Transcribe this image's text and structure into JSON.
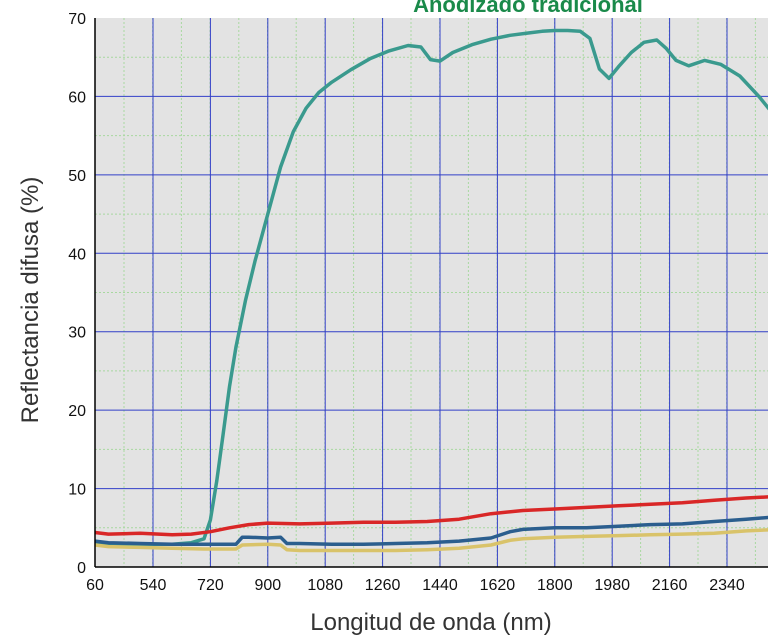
{
  "chart_data": {
    "type": "line",
    "title": "Anodizado tradicional",
    "xlabel": "Longitud de onda (nm)",
    "ylabel": "Reflectancia difusa (%)",
    "xlim": [
      250,
      2500
    ],
    "ylim": [
      0,
      70
    ],
    "x_ticks": [
      "60",
      "540",
      "720",
      "900",
      "1080",
      "1260",
      "1440",
      "1620",
      "1800",
      "1980",
      "2160",
      "2340"
    ],
    "y_ticks": [
      "0",
      "10",
      "20",
      "30",
      "40",
      "50",
      "60",
      "70"
    ],
    "grid": true,
    "series": [
      {
        "color": "#3a9a8e",
        "x": [
          250,
          400,
          500,
          600,
          660,
          700,
          720,
          740,
          760,
          780,
          800,
          830,
          860,
          900,
          940,
          980,
          1020,
          1060,
          1100,
          1160,
          1220,
          1280,
          1340,
          1380,
          1410,
          1440,
          1480,
          1540,
          1600,
          1660,
          1720,
          1760,
          1800,
          1840,
          1880,
          1910,
          1940,
          1970,
          2000,
          2040,
          2080,
          2120,
          2150,
          2180,
          2220,
          2270,
          2320,
          2380,
          2440,
          2500
        ],
        "y": [
          3.2,
          3.0,
          2.9,
          2.9,
          3.1,
          3.6,
          6,
          11,
          17,
          23,
          28,
          34,
          39,
          45,
          51,
          55.5,
          58.5,
          60.5,
          61.8,
          63.4,
          64.8,
          65.8,
          66.5,
          66.3,
          64.7,
          64.5,
          65.6,
          66.6,
          67.3,
          67.8,
          68.1,
          68.3,
          68.4,
          68.4,
          68.3,
          67.4,
          63.5,
          62.3,
          63.8,
          65.6,
          66.9,
          67.2,
          66.1,
          64.6,
          63.9,
          64.6,
          64.1,
          62.6,
          60.0,
          57.0
        ]
      },
      {
        "color": "#d92727",
        "x": [
          250,
          400,
          500,
          600,
          660,
          720,
          780,
          840,
          900,
          1000,
          1100,
          1200,
          1300,
          1400,
          1500,
          1600,
          1700,
          1800,
          1900,
          2000,
          2100,
          2200,
          2300,
          2400,
          2500
        ],
        "y": [
          4.4,
          4.2,
          4.3,
          4.1,
          4.2,
          4.5,
          5.0,
          5.4,
          5.6,
          5.5,
          5.6,
          5.7,
          5.7,
          5.8,
          6.1,
          6.8,
          7.2,
          7.4,
          7.6,
          7.8,
          8.0,
          8.2,
          8.5,
          8.8,
          9.0
        ]
      },
      {
        "color": "#2b5e8e",
        "x": [
          250,
          400,
          500,
          600,
          700,
          800,
          820,
          840,
          900,
          940,
          960,
          1000,
          1100,
          1200,
          1300,
          1400,
          1500,
          1600,
          1660,
          1700,
          1800,
          1900,
          2000,
          2100,
          2200,
          2300,
          2400,
          2500
        ],
        "y": [
          3.3,
          3.1,
          3.0,
          2.9,
          2.9,
          2.9,
          3.8,
          3.8,
          3.7,
          3.8,
          3.0,
          3.0,
          2.9,
          2.9,
          3.0,
          3.1,
          3.3,
          3.7,
          4.5,
          4.8,
          5.0,
          5.0,
          5.2,
          5.4,
          5.5,
          5.8,
          6.1,
          6.4
        ]
      },
      {
        "color": "#d9c36a",
        "x": [
          250,
          400,
          500,
          600,
          700,
          800,
          820,
          900,
          940,
          960,
          1000,
          1100,
          1200,
          1300,
          1400,
          1500,
          1600,
          1660,
          1700,
          1800,
          1900,
          2000,
          2100,
          2200,
          2300,
          2400,
          2500
        ],
        "y": [
          2.8,
          2.6,
          2.5,
          2.4,
          2.3,
          2.3,
          2.8,
          2.9,
          2.8,
          2.2,
          2.1,
          2.1,
          2.1,
          2.1,
          2.2,
          2.4,
          2.8,
          3.4,
          3.6,
          3.8,
          3.9,
          4.0,
          4.1,
          4.2,
          4.3,
          4.6,
          4.8
        ]
      }
    ]
  }
}
